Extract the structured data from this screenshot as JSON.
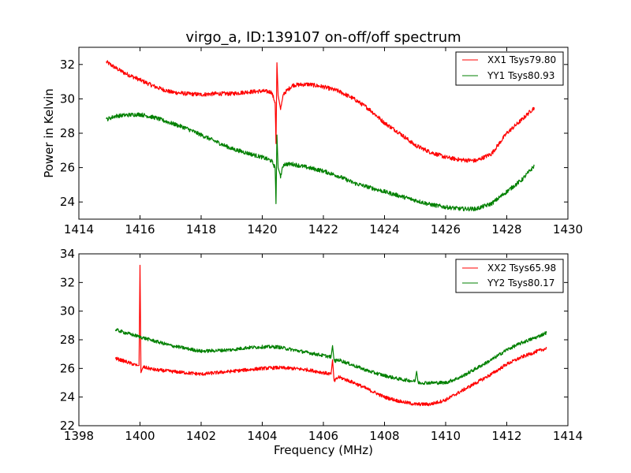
{
  "chart_data": [
    {
      "type": "line",
      "title": "virgo_a, ID:139107 on-off/off spectrum",
      "xlabel": "",
      "ylabel": "Power in Kelvin",
      "xlim": [
        1414,
        1430
      ],
      "ylim": [
        23,
        33
      ],
      "xticks": [
        1414,
        1416,
        1418,
        1420,
        1422,
        1424,
        1426,
        1428,
        1430
      ],
      "yticks": [
        24,
        26,
        28,
        30,
        32
      ],
      "grid": false,
      "legend_position": "top-right",
      "series": [
        {
          "name": "XX1 Tsys79.80",
          "color": "#ff0000",
          "x": [
            1414.9,
            1415.2,
            1415.5,
            1416.0,
            1416.5,
            1417.0,
            1417.5,
            1418.0,
            1418.5,
            1419.0,
            1419.5,
            1420.0,
            1420.3,
            1420.42,
            1420.45,
            1420.48,
            1420.52,
            1420.6,
            1420.7,
            1421.0,
            1421.5,
            1422.0,
            1422.5,
            1423.0,
            1423.5,
            1424.0,
            1424.5,
            1425.0,
            1425.5,
            1426.0,
            1426.5,
            1427.0,
            1427.5,
            1428.0,
            1428.5,
            1428.9
          ],
          "y": [
            32.15,
            31.8,
            31.5,
            31.1,
            30.7,
            30.4,
            30.3,
            30.25,
            30.3,
            30.3,
            30.4,
            30.45,
            30.4,
            29.8,
            27.4,
            32.1,
            30.2,
            29.4,
            30.3,
            30.8,
            30.85,
            30.7,
            30.45,
            30.0,
            29.4,
            28.6,
            28.0,
            27.3,
            26.9,
            26.6,
            26.45,
            26.4,
            26.8,
            28.0,
            28.8,
            29.5
          ]
        },
        {
          "name": "YY1 Tsys80.93",
          "color": "#008000",
          "x": [
            1414.9,
            1415.2,
            1415.5,
            1416.0,
            1416.5,
            1417.0,
            1417.5,
            1418.0,
            1418.5,
            1419.0,
            1419.5,
            1420.0,
            1420.3,
            1420.42,
            1420.45,
            1420.48,
            1420.52,
            1420.6,
            1420.7,
            1421.0,
            1421.5,
            1422.0,
            1422.5,
            1423.0,
            1423.5,
            1424.0,
            1424.5,
            1425.0,
            1425.5,
            1426.0,
            1426.5,
            1427.0,
            1427.5,
            1428.0,
            1428.5,
            1428.9
          ],
          "y": [
            28.8,
            29.0,
            29.05,
            29.1,
            28.9,
            28.6,
            28.3,
            27.9,
            27.5,
            27.1,
            26.85,
            26.6,
            26.4,
            26.0,
            23.9,
            27.9,
            26.0,
            25.5,
            26.2,
            26.2,
            26.0,
            25.8,
            25.5,
            25.1,
            24.85,
            24.6,
            24.35,
            24.1,
            23.85,
            23.7,
            23.6,
            23.6,
            23.9,
            24.6,
            25.3,
            26.1
          ]
        }
      ]
    },
    {
      "type": "line",
      "title": "",
      "xlabel": "Frequency (MHz)",
      "ylabel": "",
      "xlim": [
        1398,
        1414
      ],
      "ylim": [
        22,
        34
      ],
      "xticks": [
        1398,
        1400,
        1402,
        1404,
        1406,
        1408,
        1410,
        1412,
        1414
      ],
      "yticks": [
        22,
        24,
        26,
        28,
        30,
        32,
        34
      ],
      "grid": false,
      "legend_position": "top-right",
      "series": [
        {
          "name": "XX2 Tsys65.98",
          "color": "#ff0000",
          "x": [
            1399.2,
            1399.5,
            1399.9,
            1399.97,
            1400.0,
            1400.03,
            1400.1,
            1400.5,
            1401.0,
            1401.5,
            1402.0,
            1402.5,
            1403.0,
            1403.5,
            1404.0,
            1404.5,
            1405.0,
            1405.5,
            1406.0,
            1406.25,
            1406.3,
            1406.35,
            1406.5,
            1407.0,
            1407.5,
            1408.0,
            1408.5,
            1409.0,
            1409.5,
            1410.0,
            1410.5,
            1411.0,
            1411.5,
            1412.0,
            1412.5,
            1413.0,
            1413.3
          ],
          "y": [
            26.7,
            26.5,
            26.2,
            26.2,
            33.2,
            25.7,
            26.1,
            25.9,
            25.8,
            25.7,
            25.6,
            25.7,
            25.8,
            25.9,
            26.0,
            26.05,
            26.0,
            25.9,
            25.7,
            25.6,
            26.6,
            25.1,
            25.4,
            25.0,
            24.5,
            24.0,
            23.7,
            23.5,
            23.5,
            23.8,
            24.4,
            25.0,
            25.6,
            26.3,
            26.8,
            27.2,
            27.4
          ]
        },
        {
          "name": "YY2 Tsys80.17",
          "color": "#008000",
          "x": [
            1399.2,
            1399.5,
            1400.0,
            1400.5,
            1401.0,
            1401.5,
            1402.0,
            1402.5,
            1403.0,
            1403.5,
            1404.0,
            1404.5,
            1405.0,
            1405.5,
            1406.0,
            1406.25,
            1406.3,
            1406.35,
            1406.5,
            1407.0,
            1407.5,
            1408.0,
            1408.5,
            1409.0,
            1409.05,
            1409.1,
            1409.5,
            1410.0,
            1410.5,
            1411.0,
            1411.5,
            1412.0,
            1412.5,
            1413.0,
            1413.3
          ],
          "y": [
            28.7,
            28.5,
            28.2,
            27.9,
            27.6,
            27.4,
            27.2,
            27.25,
            27.3,
            27.45,
            27.5,
            27.5,
            27.3,
            27.1,
            26.9,
            26.8,
            27.6,
            26.5,
            26.6,
            26.2,
            25.8,
            25.5,
            25.25,
            25.1,
            25.8,
            25.0,
            25.0,
            25.0,
            25.4,
            26.0,
            26.6,
            27.3,
            27.8,
            28.2,
            28.5
          ]
        }
      ]
    }
  ]
}
